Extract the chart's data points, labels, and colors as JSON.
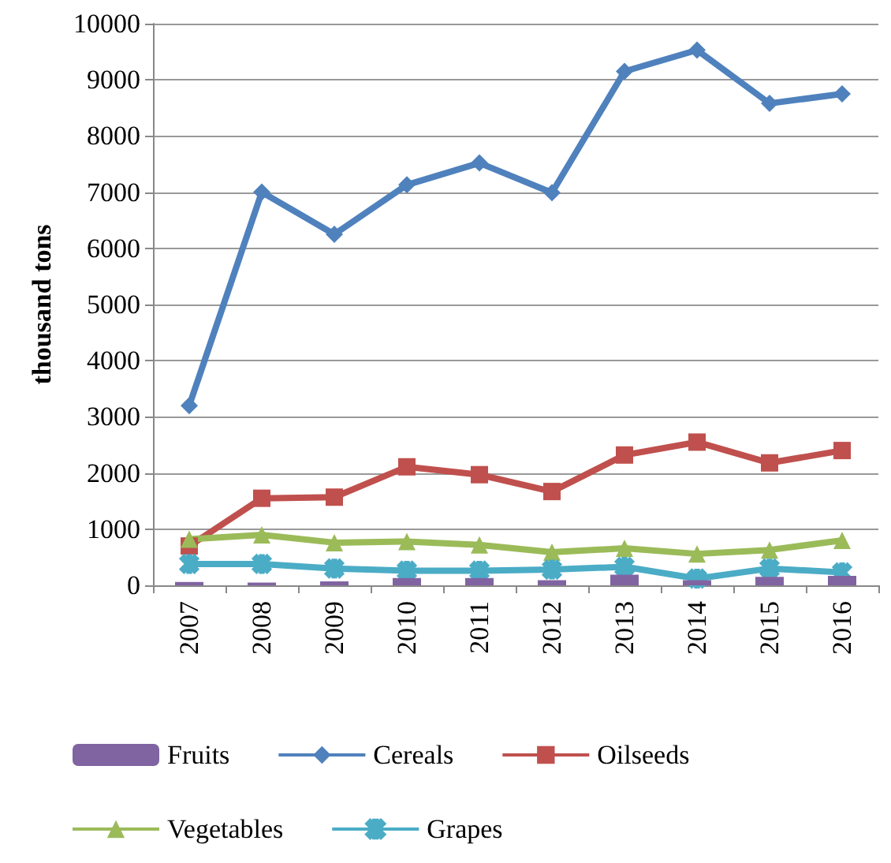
{
  "chart_data": {
    "type": "line",
    "ylabel": "thousand tons",
    "categories": [
      "2007",
      "2008",
      "2009",
      "2010",
      "2011",
      "2012",
      "2013",
      "2014",
      "2015",
      "2016"
    ],
    "series": [
      {
        "name": "Fruits",
        "type": "bar",
        "color": "#8064a2",
        "values": [
          60,
          50,
          70,
          130,
          130,
          90,
          190,
          90,
          150,
          170
        ]
      },
      {
        "name": "Cereals",
        "color": "#4f81bd",
        "marker": "diamond",
        "values": [
          3200,
          7000,
          6250,
          7130,
          7520,
          6990,
          9150,
          9530,
          8580,
          8750
        ]
      },
      {
        "name": "Oilseeds",
        "color": "#c0504d",
        "marker": "square",
        "values": [
          700,
          1550,
          1570,
          2110,
          1970,
          1670,
          2320,
          2550,
          2180,
          2400
        ]
      },
      {
        "name": "Vegetables",
        "color": "#9bbb59",
        "marker": "triangle",
        "values": [
          820,
          900,
          760,
          780,
          720,
          590,
          660,
          560,
          630,
          800
        ]
      },
      {
        "name": "Grapes",
        "color": "#4bacc6",
        "marker": "cross",
        "values": [
          380,
          380,
          300,
          260,
          260,
          280,
          330,
          120,
          300,
          230
        ]
      }
    ],
    "ylim": [
      0,
      10000
    ],
    "yticks": [
      0,
      1000,
      2000,
      3000,
      4000,
      5000,
      6000,
      7000,
      8000,
      9000,
      10000
    ],
    "grid": "y",
    "legend": "bottom"
  }
}
